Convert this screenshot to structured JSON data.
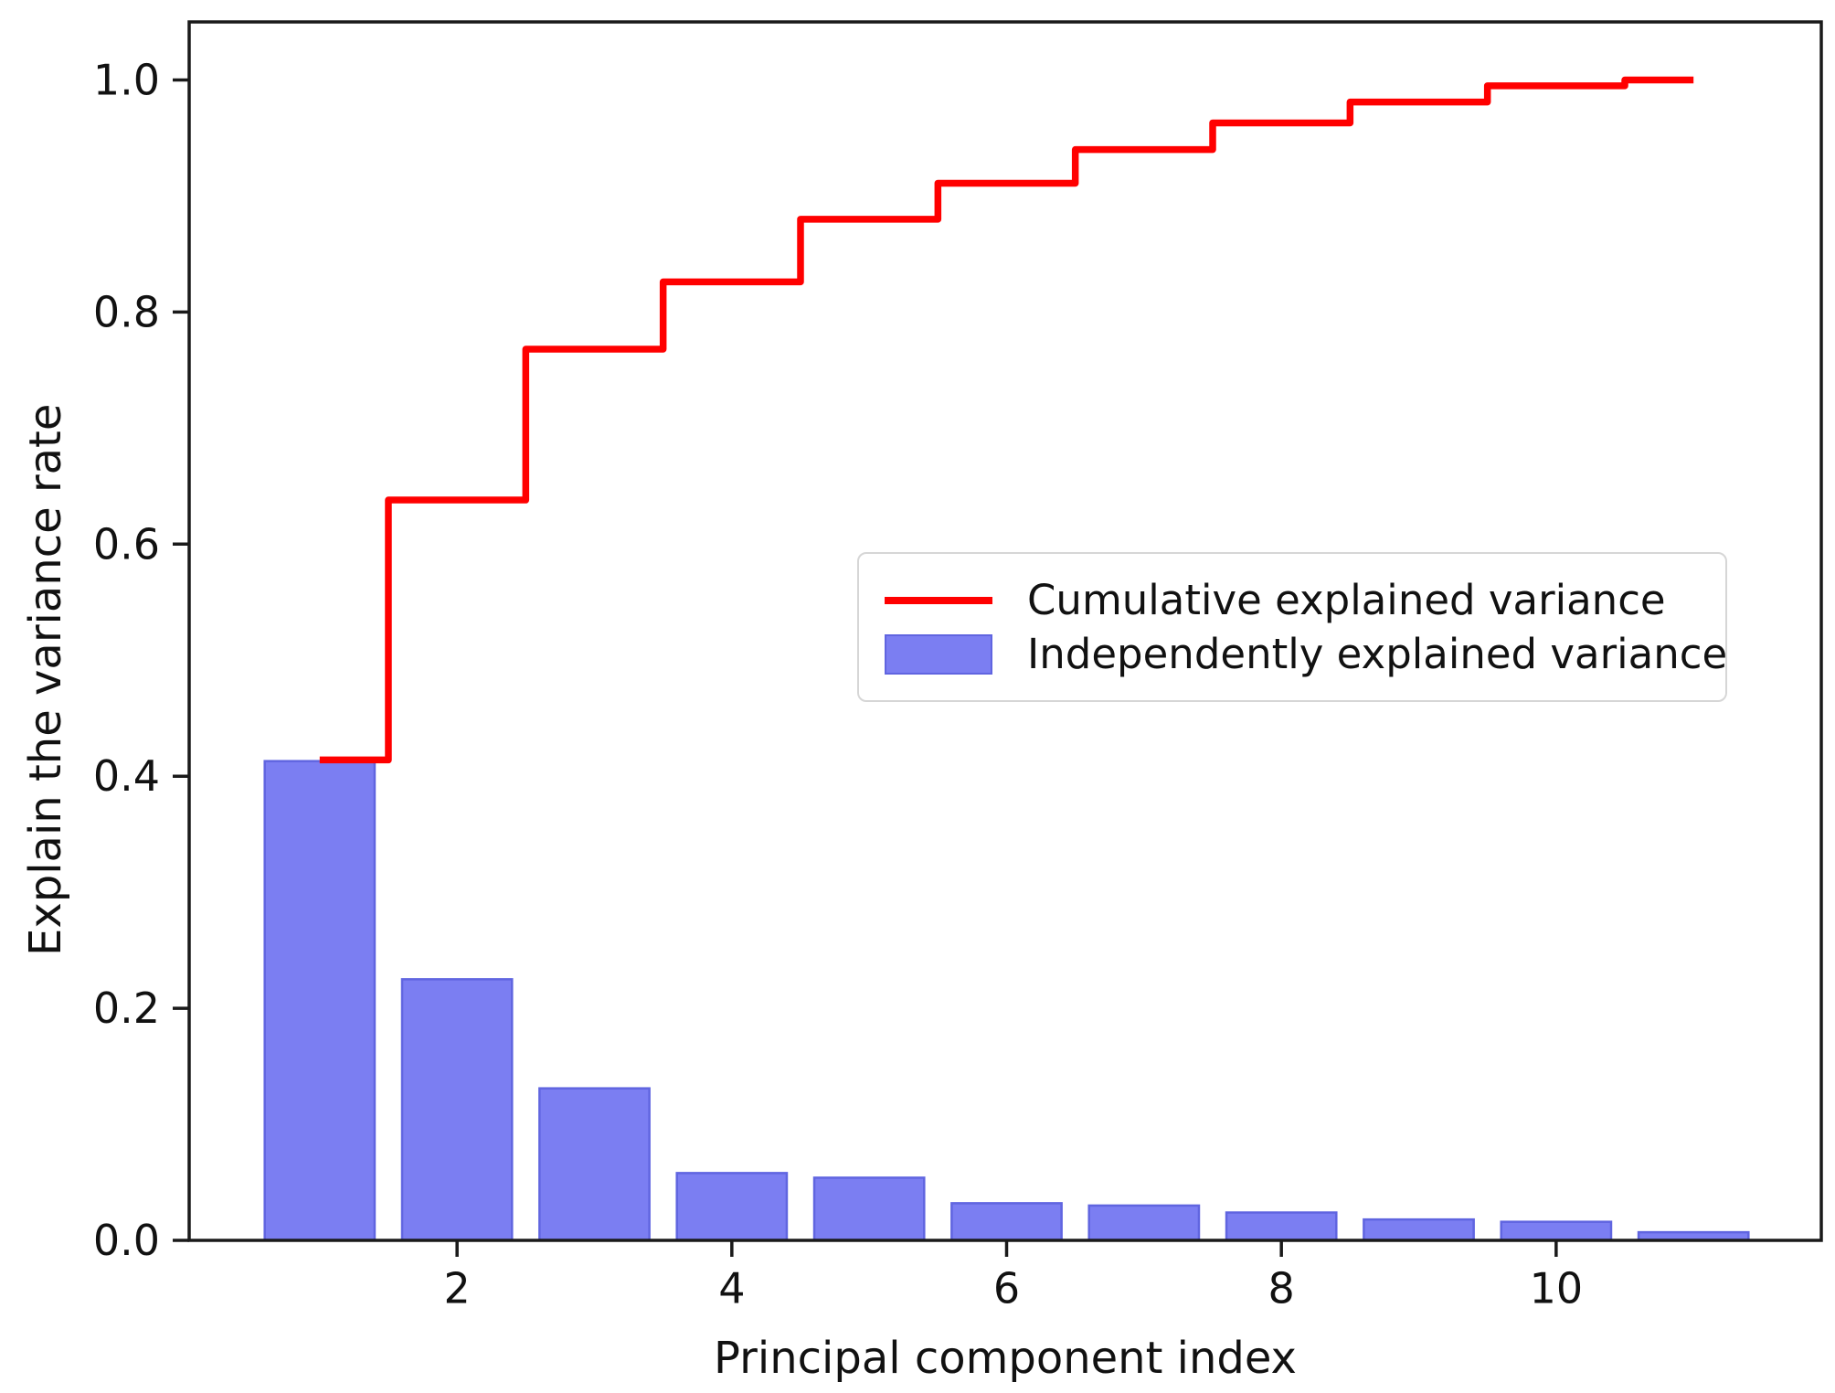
{
  "chart_data": {
    "type": "bar",
    "title": "",
    "xlabel": "Principal component index",
    "ylabel": "Explain the variance rate",
    "x": [
      1,
      2,
      3,
      4,
      5,
      6,
      7,
      8,
      9,
      10,
      11
    ],
    "series": [
      {
        "name": "Cumulative explained variance",
        "type": "step",
        "where": "mid",
        "values": [
          0.414,
          0.638,
          0.768,
          0.826,
          0.88,
          0.911,
          0.94,
          0.963,
          0.981,
          0.995,
          1.0
        ]
      },
      {
        "name": "Independently explained variance",
        "type": "bar",
        "bar_width": 0.8,
        "values": [
          0.413,
          0.225,
          0.131,
          0.058,
          0.054,
          0.032,
          0.03,
          0.024,
          0.018,
          0.016,
          0.007
        ]
      }
    ],
    "xlim": [
      0.05,
      11.93
    ],
    "ylim": [
      0,
      1.05
    ],
    "x_ticks": {
      "values": [
        2,
        4,
        6,
        8,
        10
      ],
      "labels": [
        "2",
        "4",
        "6",
        "8",
        "10"
      ]
    },
    "y_ticks": {
      "values": [
        0.0,
        0.2,
        0.4,
        0.6,
        0.8,
        1.0
      ],
      "labels": [
        "0.0",
        "0.2",
        "0.4",
        "0.6",
        "0.8",
        "1.0"
      ]
    },
    "grid": false,
    "legend_position": "center right"
  },
  "legend": {
    "items": [
      {
        "label": "Cumulative explained variance",
        "swatch": "line"
      },
      {
        "label": "Independently explained variance",
        "swatch": "rect"
      }
    ]
  },
  "colors": {
    "line": "#ff0000",
    "bar_fill": "#7b7ef2",
    "bar_edge": "#6065e0",
    "axis": "#1a1a1a",
    "text": "#111111",
    "legend_border": "#d6d6d6",
    "background": "#ffffff"
  }
}
